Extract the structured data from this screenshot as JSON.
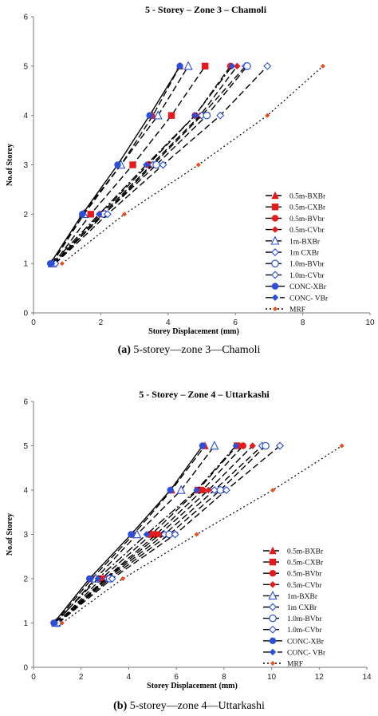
{
  "legend_entries": [
    {
      "label": "0.5m-BXBr",
      "marker": "triangle",
      "color": "#e41a1c",
      "dash": "8,4"
    },
    {
      "label": "0.5m-CXBr",
      "marker": "square",
      "color": "#e41a1c",
      "dash": "8,4"
    },
    {
      "label": "0.5m-BVbr",
      "marker": "circle",
      "color": "#e41a1c",
      "dash": "8,4"
    },
    {
      "label": "0.5m-CVbr",
      "marker": "diamond",
      "color": "#e41a1c",
      "dash": "8,4"
    },
    {
      "label": "1m-BXBr",
      "marker": "triangle-open",
      "color": "#2b4fd6",
      "dash": "8,4"
    },
    {
      "label": "1m CXBr",
      "marker": "diamond-open",
      "color": "#2b4fd6",
      "dash": "8,4"
    },
    {
      "label": "1.0m-BVbr",
      "marker": "circle-open",
      "color": "#2b4fd6",
      "dash": "8,4"
    },
    {
      "label": "1.0m-CVbr",
      "marker": "diamond-open",
      "color": "#2b4fd6",
      "dash": "8,4"
    },
    {
      "label": "CONC-XBr",
      "marker": "circle",
      "color": "#2b4fd6",
      "dash": ""
    },
    {
      "label": "CONC- VBr",
      "marker": "diamond",
      "color": "#2b4fd6",
      "dash": "10,3,2,3"
    },
    {
      "label": "MRF",
      "marker": "diamond-small",
      "color": "#e8501e",
      "dash": "2,3"
    }
  ],
  "chart_data": [
    {
      "type": "line",
      "title": "5 - Storey – Zone 3 – Chamoli",
      "xlabel": "Storey Displacement (mm)",
      "ylabel": "No.of Storey",
      "xlim": [
        0,
        10
      ],
      "ylim": [
        0,
        6
      ],
      "xticks": [
        "0",
        "2",
        "4",
        "6",
        "8",
        "10"
      ],
      "yticks": [
        "0",
        "1",
        "2",
        "3",
        "4",
        "5",
        "6"
      ],
      "legend_position": "right",
      "series": [
        {
          "name": "0.5m-BXBr",
          "x": [
            0.55,
            1.45,
            2.6,
            3.55,
            4.35
          ],
          "y": [
            1,
            2,
            3,
            4,
            5
          ]
        },
        {
          "name": "0.5m-CXBr",
          "x": [
            0.6,
            1.7,
            2.95,
            4.1,
            5.1
          ],
          "y": [
            1,
            2,
            3,
            4,
            5
          ]
        },
        {
          "name": "0.5m-BVbr",
          "x": [
            0.6,
            2.0,
            3.4,
            4.8,
            5.85
          ],
          "y": [
            1,
            2,
            3,
            4,
            5
          ]
        },
        {
          "name": "0.5m-CVbr",
          "x": [
            0.65,
            2.05,
            3.5,
            4.95,
            6.05
          ],
          "y": [
            1,
            2,
            3,
            4,
            5
          ]
        },
        {
          "name": "1m-BXBr",
          "x": [
            0.55,
            1.5,
            2.6,
            3.7,
            4.6
          ],
          "y": [
            1,
            2,
            3,
            4,
            5
          ]
        },
        {
          "name": "1m CXBr",
          "x": [
            0.6,
            2.1,
            3.55,
            5.0,
            6.3
          ],
          "y": [
            1,
            2,
            3,
            4,
            5
          ]
        },
        {
          "name": "1.0m-BVbr",
          "x": [
            0.6,
            2.1,
            3.65,
            5.15,
            6.35
          ],
          "y": [
            1,
            2,
            3,
            4,
            5
          ]
        },
        {
          "name": "1.0m-CVbr",
          "x": [
            0.65,
            2.2,
            3.85,
            5.55,
            6.95
          ],
          "y": [
            1,
            2,
            3,
            4,
            5
          ]
        },
        {
          "name": "CONC-XBr",
          "x": [
            0.5,
            1.45,
            2.5,
            3.45,
            4.35
          ],
          "y": [
            1,
            2,
            3,
            4,
            5
          ]
        },
        {
          "name": "CONC- VBr",
          "x": [
            0.55,
            1.95,
            3.35,
            4.8,
            5.9
          ],
          "y": [
            1,
            2,
            3,
            4,
            5
          ]
        },
        {
          "name": "MRF",
          "x": [
            0.85,
            2.7,
            4.9,
            6.95,
            8.6
          ],
          "y": [
            1,
            2,
            3,
            4,
            5
          ]
        }
      ]
    },
    {
      "type": "line",
      "title": "5 - Storey  – Zone 4 – Uttarkashi",
      "xlabel": "Storey Displacement (mm)",
      "ylabel": "No.of Storey",
      "xlim": [
        0,
        14
      ],
      "ylim": [
        0,
        6
      ],
      "xticks": [
        "0",
        "2",
        "4",
        "6",
        "8",
        "10",
        "12",
        "14"
      ],
      "yticks": [
        "0",
        "1",
        "2",
        "3",
        "4",
        "5",
        "6"
      ],
      "legend_position": "right",
      "series": [
        {
          "name": "0.5m-BXBr",
          "x": [
            0.9,
            2.45,
            4.2,
            5.8,
            7.2
          ],
          "y": [
            1,
            2,
            3,
            4,
            5
          ]
        },
        {
          "name": "0.5m-CXBr",
          "x": [
            1.0,
            2.85,
            4.95,
            6.9,
            8.55
          ],
          "y": [
            1,
            2,
            3,
            4,
            5
          ]
        },
        {
          "name": "0.5m-BVbr",
          "x": [
            1.0,
            3.0,
            5.15,
            7.1,
            8.8
          ],
          "y": [
            1,
            2,
            3,
            4,
            5
          ]
        },
        {
          "name": "0.5m-CVbr",
          "x": [
            1.05,
            3.05,
            5.3,
            7.35,
            9.2
          ],
          "y": [
            1,
            2,
            3,
            4,
            5
          ]
        },
        {
          "name": "1m-BXBr",
          "x": [
            0.95,
            2.6,
            4.35,
            6.2,
            7.6
          ],
          "y": [
            1,
            2,
            3,
            4,
            5
          ]
        },
        {
          "name": "1m CXBr",
          "x": [
            1.0,
            3.1,
            5.5,
            7.6,
            9.6
          ],
          "y": [
            1,
            2,
            3,
            4,
            5
          ]
        },
        {
          "name": "1.0m-BVbr",
          "x": [
            1.0,
            3.2,
            5.7,
            7.85,
            9.75
          ],
          "y": [
            1,
            2,
            3,
            4,
            5
          ]
        },
        {
          "name": "1.0m-CVbr",
          "x": [
            1.05,
            3.3,
            5.95,
            8.1,
            10.35
          ],
          "y": [
            1,
            2,
            3,
            4,
            5
          ]
        },
        {
          "name": "CONC-XBr",
          "x": [
            0.85,
            2.35,
            4.1,
            5.75,
            7.1
          ],
          "y": [
            1,
            2,
            3,
            4,
            5
          ]
        },
        {
          "name": "CONC- VBr",
          "x": [
            0.9,
            2.7,
            4.75,
            6.85,
            8.5
          ],
          "y": [
            1,
            2,
            3,
            4,
            5
          ]
        },
        {
          "name": "MRF",
          "x": [
            1.2,
            3.75,
            6.85,
            10.05,
            12.95
          ],
          "y": [
            1,
            2,
            3,
            4,
            5
          ]
        }
      ]
    }
  ],
  "captions": [
    {
      "tag": "(a)",
      "text": " 5-storey—zone 3—Chamoli"
    },
    {
      "tag": "(b)",
      "text": " 5-storey—zone 4—Uttarkashi"
    }
  ]
}
